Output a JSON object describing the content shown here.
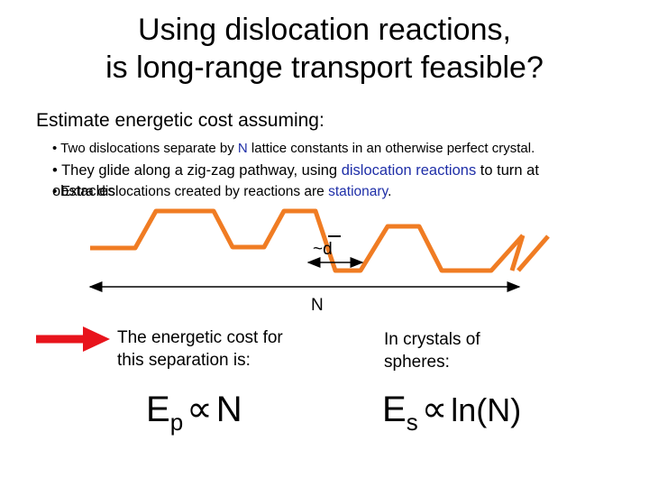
{
  "title_line1": "Using dislocation reactions,",
  "title_line2": "is long-range transport feasible?",
  "heading": "Estimate energetic cost assuming:",
  "bullets": {
    "b1_pre": "• Two dislocations separate by ",
    "b1_n": "N",
    "b1_post": " lattice constants in an otherwise perfect crystal.",
    "b2_pre": "• They glide along a zig-zag pathway, using ",
    "b2_blue": "dislocation reactions",
    "b2_post": " to turn at",
    "b3_overlap": "obstacles",
    "b3_pre": "• Extra dislocations created by reactions are ",
    "b3_blue": "stationary",
    "b3_post": "."
  },
  "diagram": {
    "d_label": "~d",
    "n_label": "N",
    "path_color": "#f07c23",
    "arrow_color": "#e8141c"
  },
  "cost_text": [
    "The energetic cost for",
    "this separation is:"
  ],
  "crystal_text": [
    "In crystals of",
    "spheres:"
  ],
  "formula_p": {
    "symbol": "E",
    "sub": "p",
    "prop": "∝",
    "arg": "N"
  },
  "formula_s": {
    "symbol": "E",
    "sub": "s",
    "prop": "∝",
    "arg": "ln(N)"
  }
}
